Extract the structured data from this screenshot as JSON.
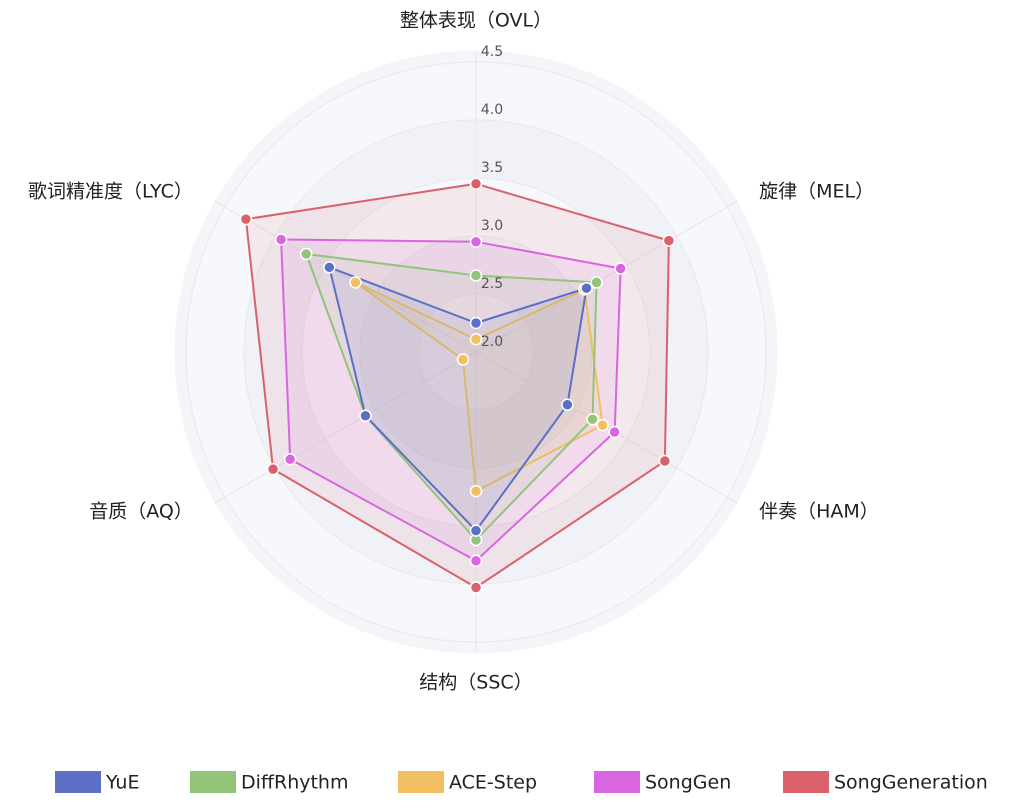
{
  "chart_data": {
    "type": "radar",
    "categories": [
      "整体表现（OVL）",
      "旋律（MEL）",
      "伴奏（HAM）",
      "结构（SSC）",
      "音质（AQ）",
      "歌词精准度（LYC）"
    ],
    "rlim": [
      2.0,
      4.6
    ],
    "rticks": [
      {
        "value": 2.0,
        "label": "2.0"
      },
      2.5,
      {
        "value": 3.0,
        "label": "3.0"
      },
      3.5,
      {
        "value": 4.0,
        "label": "4.0"
      },
      4.5
    ],
    "grid": true,
    "legend": "bottom",
    "series": [
      {
        "name": "YuE",
        "color": "#5b6fc4",
        "values": [
          2.25,
          3.1,
          2.91,
          3.54,
          3.1,
          3.46
        ]
      },
      {
        "name": "DiffRhythm",
        "color": "#93c47a",
        "values": [
          2.66,
          3.2,
          3.16,
          3.62,
          3.1,
          3.69
        ]
      },
      {
        "name": "ACE-Step",
        "color": "#f2c063",
        "values": [
          2.11,
          3.08,
          3.26,
          3.2,
          2.13,
          3.2
        ]
      },
      {
        "name": "SongGen",
        "color": "#d966e0",
        "values": [
          2.95,
          3.44,
          3.38,
          3.8,
          3.85,
          3.94
        ]
      },
      {
        "name": "SongGeneration",
        "color": "#d9626a",
        "values": [
          3.45,
          3.92,
          3.88,
          4.03,
          4.02,
          4.29
        ]
      }
    ]
  }
}
